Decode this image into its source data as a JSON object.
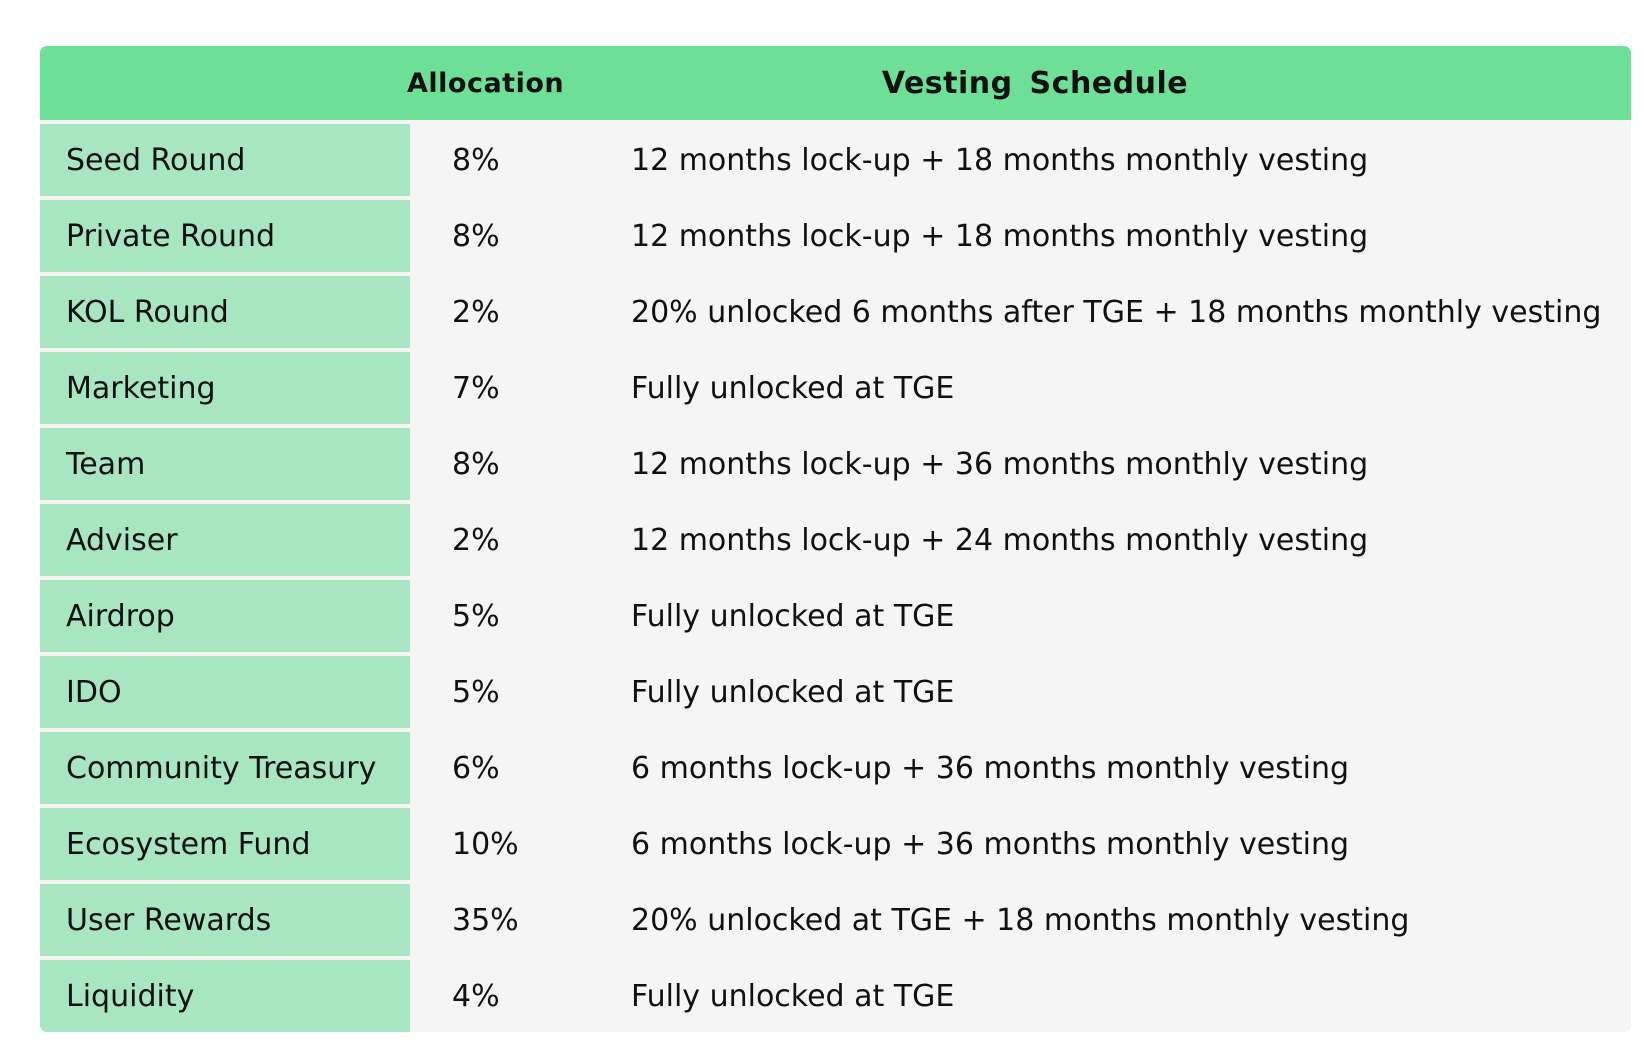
{
  "header": {
    "name": "",
    "allocation": "Allocation",
    "schedule": "Vesting  Schedule"
  },
  "rows": [
    {
      "name": "Seed Round",
      "allocation": "8%",
      "schedule": "12 months lock-up + 18 months monthly vesting"
    },
    {
      "name": "Private Round",
      "allocation": "8%",
      "schedule": "12 months lock-up + 18 months monthly vesting"
    },
    {
      "name": "KOL Round",
      "allocation": "2%",
      "schedule": "20% unlocked 6 months after TGE + 18 months monthly vesting"
    },
    {
      "name": "Marketing",
      "allocation": "7%",
      "schedule": "Fully unlocked at TGE"
    },
    {
      "name": "Team",
      "allocation": "8%",
      "schedule": "12 months lock-up + 36 months monthly vesting"
    },
    {
      "name": "Adviser",
      "allocation": "2%",
      "schedule": "12 months lock-up + 24 months monthly vesting"
    },
    {
      "name": "Airdrop",
      "allocation": "5%",
      "schedule": "Fully unlocked at TGE"
    },
    {
      "name": "IDO",
      "allocation": "5%",
      "schedule": "Fully unlocked at TGE"
    },
    {
      "name": "Community Treasury",
      "allocation": "6%",
      "schedule": "6 months lock-up + 36 months monthly vesting"
    },
    {
      "name": "Ecosystem Fund",
      "allocation": "10%",
      "schedule": "6 months lock-up + 36 months monthly vesting"
    },
    {
      "name": "User Rewards",
      "allocation": "35%",
      "schedule": "20% unlocked at TGE + 18 months monthly vesting"
    },
    {
      "name": "Liquidity",
      "allocation": "4%",
      "schedule": "Fully unlocked at TGE"
    }
  ],
  "colors": {
    "header_bg": "#6ddf97",
    "name_col_bg": "#a8e6c2",
    "cell_bg": "#f5f5f5",
    "text": "#111111"
  }
}
